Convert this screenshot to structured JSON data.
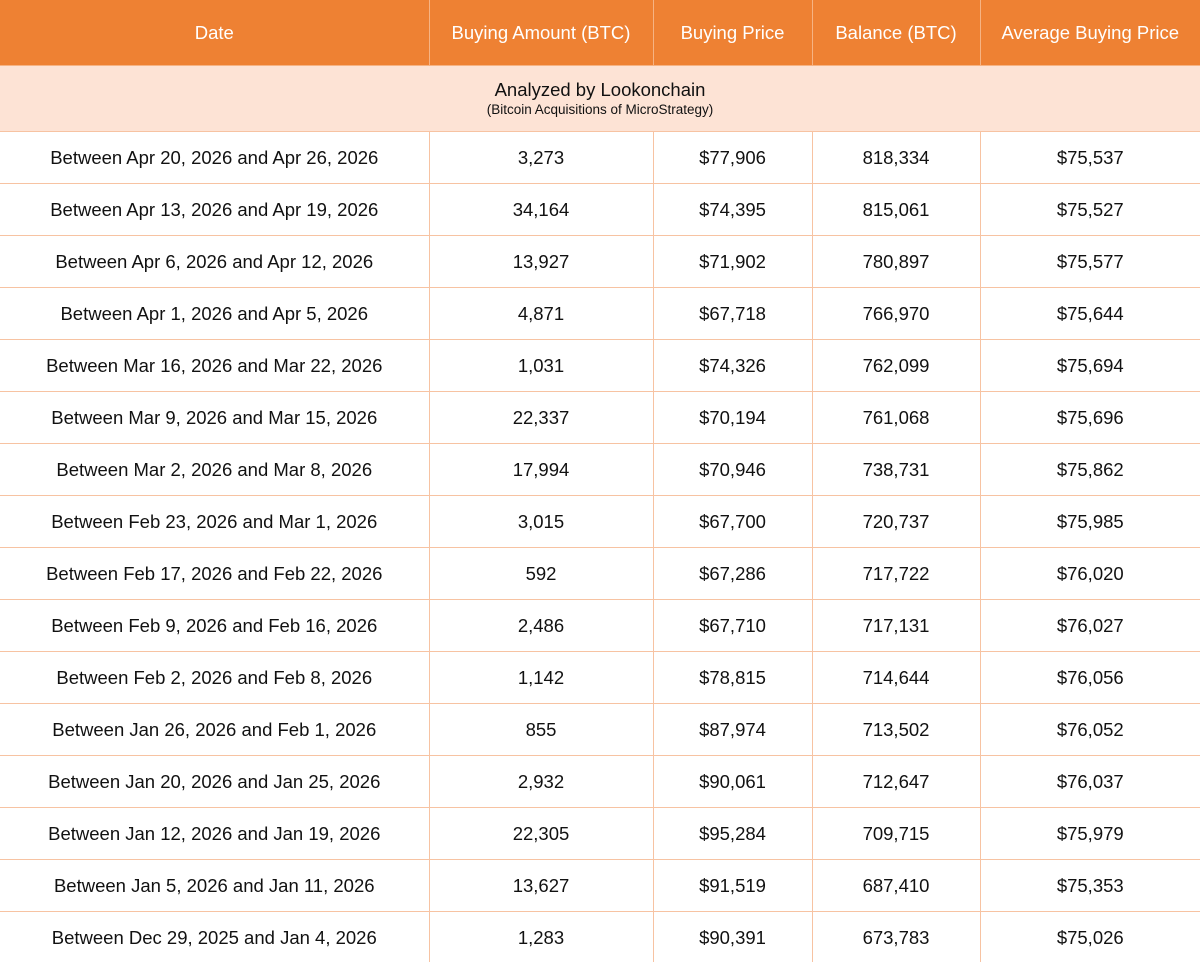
{
  "columns": [
    "Date",
    "Buying Amount (BTC)",
    "Buying Price",
    "Balance (BTC)",
    "Average Buying Price"
  ],
  "banner": {
    "title": "Analyzed by Lookonchain",
    "subtitle": "(Bitcoin Acquisitions of MicroStrategy)"
  },
  "colors": {
    "header_bg": "#ee8133",
    "banner_bg": "#fde3d5",
    "grid_line": "#f7c3a2"
  },
  "rows": [
    [
      "Between Apr 20, 2026 and Apr 26, 2026",
      "3,273",
      "$77,906",
      "818,334",
      "$75,537"
    ],
    [
      "Between Apr 13, 2026 and Apr 19, 2026",
      "34,164",
      "$74,395",
      "815,061",
      "$75,527"
    ],
    [
      "Between Apr 6, 2026 and Apr 12, 2026",
      "13,927",
      "$71,902",
      "780,897",
      "$75,577"
    ],
    [
      "Between Apr 1, 2026 and Apr 5, 2026",
      "4,871",
      "$67,718",
      "766,970",
      "$75,644"
    ],
    [
      "Between Mar 16, 2026 and Mar 22, 2026",
      "1,031",
      "$74,326",
      "762,099",
      "$75,694"
    ],
    [
      "Between Mar 9, 2026 and Mar 15, 2026",
      "22,337",
      "$70,194",
      "761,068",
      "$75,696"
    ],
    [
      "Between Mar 2, 2026 and Mar 8, 2026",
      "17,994",
      "$70,946",
      "738,731",
      "$75,862"
    ],
    [
      "Between Feb 23, 2026 and Mar 1, 2026",
      "3,015",
      "$67,700",
      "720,737",
      "$75,985"
    ],
    [
      "Between Feb 17, 2026 and Feb 22, 2026",
      "592",
      "$67,286",
      "717,722",
      "$76,020"
    ],
    [
      "Between Feb 9, 2026 and Feb 16, 2026",
      "2,486",
      "$67,710",
      "717,131",
      "$76,027"
    ],
    [
      "Between Feb 2, 2026 and Feb 8, 2026",
      "1,142",
      "$78,815",
      "714,644",
      "$76,056"
    ],
    [
      "Between Jan 26, 2026 and Feb 1, 2026",
      "855",
      "$87,974",
      "713,502",
      "$76,052"
    ],
    [
      "Between Jan 20, 2026 and Jan 25, 2026",
      "2,932",
      "$90,061",
      "712,647",
      "$76,037"
    ],
    [
      "Between Jan 12, 2026 and Jan 19, 2026",
      "22,305",
      "$95,284",
      "709,715",
      "$75,979"
    ],
    [
      "Between Jan 5, 2026 and Jan 11, 2026",
      "13,627",
      "$91,519",
      "687,410",
      "$75,353"
    ],
    [
      "Between Dec 29, 2025 and Jan 4, 2026",
      "1,283",
      "$90,391",
      "673,783",
      "$75,026"
    ]
  ]
}
